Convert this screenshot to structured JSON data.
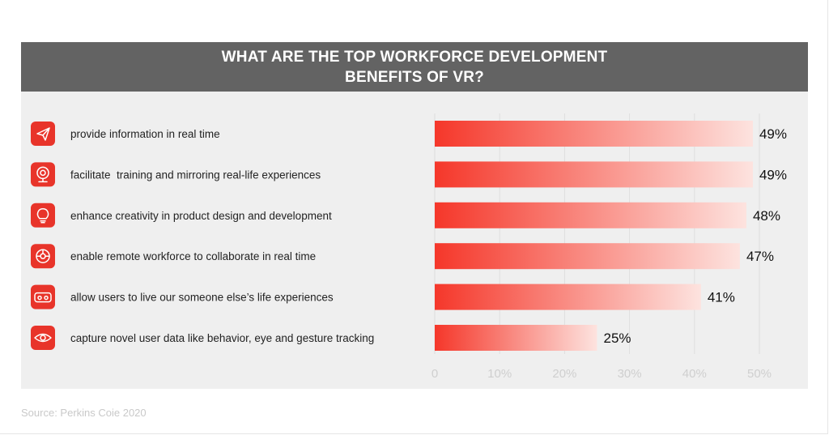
{
  "title_lines": [
    "WHAT ARE THE TOP WORKFORCE DEVELOPMENT",
    "BENEFITS OF VR?"
  ],
  "source": "Source: Perkins Coie 2020",
  "colors": {
    "title_bg": "#636363",
    "card_bg": "#efefef",
    "bar_start": "#f5372a",
    "bar_end": "#fde3df",
    "icon_bg": "#e8342a",
    "value_text": "#111111",
    "tick_text": "#cfcfcf",
    "grid": "#dedede"
  },
  "chart_data": {
    "type": "bar",
    "orientation": "horizontal",
    "title": "WHAT ARE THE TOP WORKFORCE DEVELOPMENT BENEFITS OF VR?",
    "categories": [
      "provide information in real time",
      "facilitate  training and mirroring real-life experiences",
      "enhance creativity in product design and development",
      "enable remote workforce to collaborate in real time",
      "allow users to live our someone else’s life experiences",
      "capture novel user data like behavior, eye and gesture tracking"
    ],
    "values": [
      49,
      49,
      48,
      47,
      41,
      25
    ],
    "value_labels": [
      "49%",
      "49%",
      "48%",
      "47%",
      "41%",
      "25%"
    ],
    "icons": [
      "paper-plane-icon",
      "webcam-icon",
      "lightbulb-icon",
      "remote-network-icon",
      "vr-headset-icon",
      "eye-icon"
    ],
    "xlim": [
      0,
      50
    ],
    "xticks": [
      0,
      10,
      20,
      30,
      40,
      50
    ],
    "xtick_labels": [
      "0",
      "10%",
      "20%",
      "30%",
      "40%",
      "50%"
    ],
    "grid": true
  }
}
